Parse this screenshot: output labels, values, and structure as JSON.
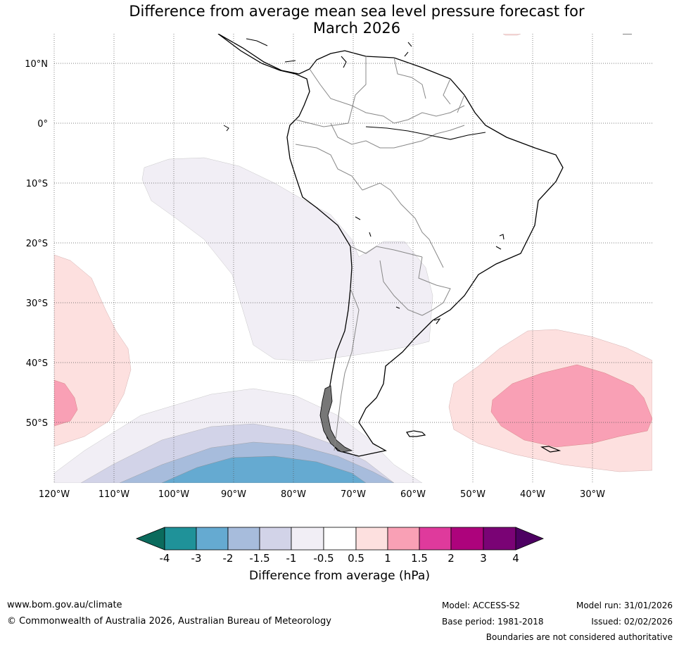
{
  "title": {
    "line1": "Difference from average mean sea level pressure forecast for",
    "line2": "March 2026"
  },
  "map": {
    "lat_labels": [
      "10°N",
      "0°",
      "10°S",
      "20°S",
      "30°S",
      "40°S",
      "50°S"
    ],
    "lon_labels": [
      "120°W",
      "110°W",
      "100°W",
      "90°W",
      "80°W",
      "70°W",
      "60°W",
      "50°W",
      "40°W",
      "30°W"
    ],
    "anomaly_regions": [
      {
        "name": "pacific-negative-anomaly",
        "level": "-0.5 to -1 and below"
      },
      {
        "name": "south-pacific-trough",
        "level": "-3 to -1"
      },
      {
        "name": "southwest-pacific-high",
        "level": "0.5 to 1.5"
      },
      {
        "name": "south-atlantic-high",
        "level": "0.5 to 1.5"
      }
    ]
  },
  "colorbar": {
    "ticks": [
      "-4",
      "-3",
      "-2",
      "-1.5",
      "-1",
      "-0.5",
      "0.5",
      "1",
      "1.5",
      "2",
      "3",
      "4"
    ],
    "colors": [
      "#1f9299",
      "#65aad1",
      "#a7bcdc",
      "#d2d3e8",
      "#f1eef5",
      "#ffffff",
      "#fde0df",
      "#f9a0b5",
      "#df3a9c",
      "#ad037c",
      "#7a0375"
    ],
    "under_color": "#0b6b5d",
    "over_color": "#4d0062",
    "label": "Difference from average (hPa)"
  },
  "footer": {
    "url": "www.bom.gov.au/climate",
    "copyright": "© Commonwealth of Australia 2026, Australian Bureau of Meteorology",
    "model": "Model: ACCESS-S2",
    "base_period": "Base period: 1981-2018",
    "model_run": "Model run: 31/01/2026",
    "issued": "Issued: 02/02/2026",
    "disclaimer": "Boundaries are not considered authoritative"
  }
}
